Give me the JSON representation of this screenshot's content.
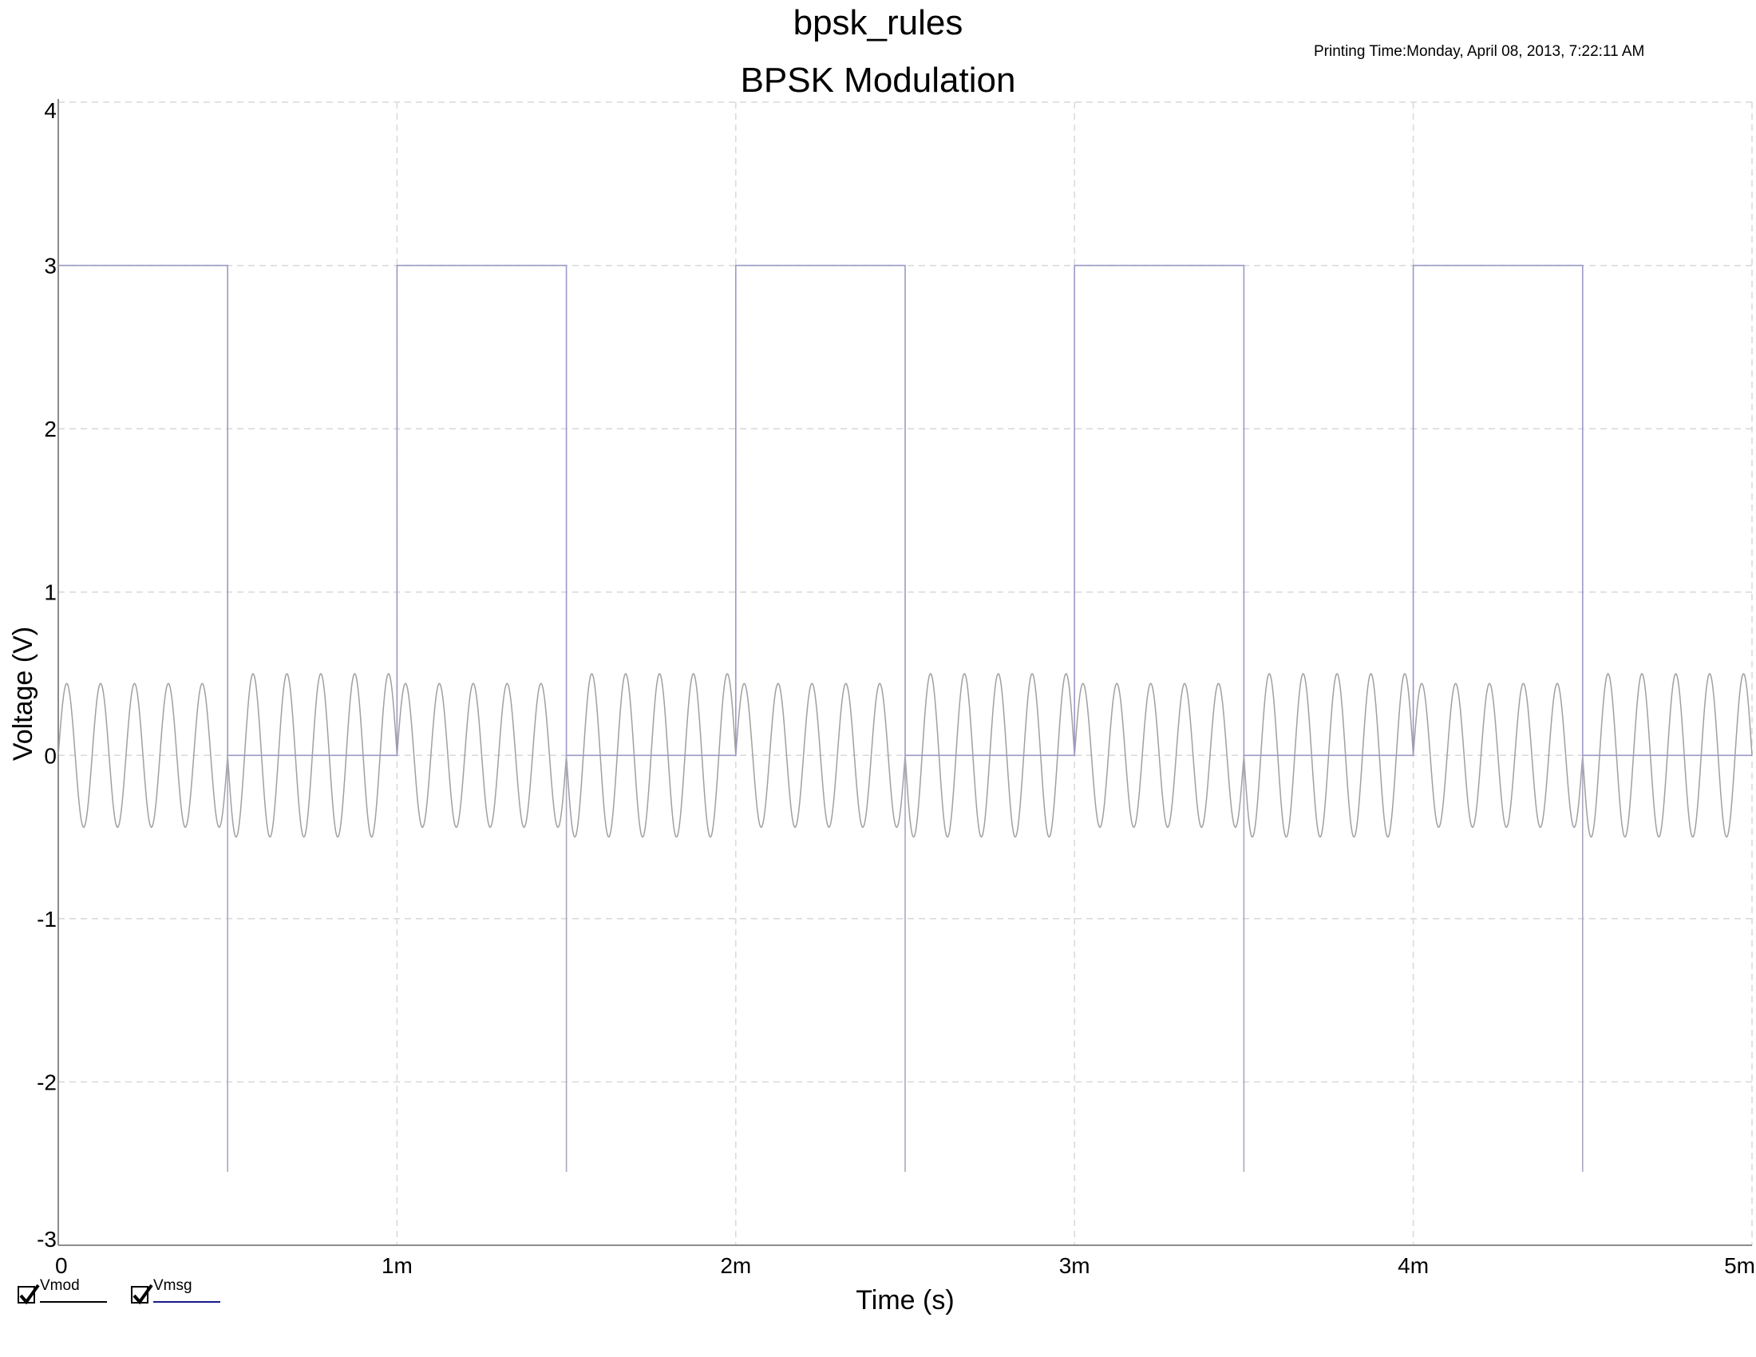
{
  "header": {
    "doc_title": "bpsk_rules",
    "printing_time": "Printing Time:Monday, April 08, 2013, 7:22:11 AM"
  },
  "chart_data": {
    "type": "line",
    "title": "BPSK Modulation",
    "xlabel": "Time (s)",
    "ylabel": "Voltage (V)",
    "xlim": [
      0,
      0.005
    ],
    "ylim": [
      -3,
      4
    ],
    "x_ticks": [
      0,
      0.001,
      0.002,
      0.003,
      0.004,
      0.005
    ],
    "x_tick_labels": [
      "0",
      "1m",
      "2m",
      "3m",
      "4m",
      "5m"
    ],
    "y_ticks": [
      -3,
      -2,
      -1,
      0,
      1,
      2,
      3,
      4
    ],
    "y_tick_labels": [
      "-3",
      "-2",
      "-1",
      "0",
      "1",
      "2",
      "3",
      "4"
    ],
    "grid": true,
    "legend_position": "bottom-left",
    "series": [
      {
        "name": "Vmod",
        "kind": "bpsk-sine",
        "color": "#a0a0a0",
        "frequency_hz": 10000,
        "amplitude_high_bit": 0.44,
        "amplitude_low_bit": 0.5,
        "samples": [
          {
            "x": 2.5e-05,
            "y": 0.44
          },
          {
            "x": 7.5e-05,
            "y": -0.44
          },
          {
            "x": 0.000525,
            "y": -0.5
          },
          {
            "x": 0.000575,
            "y": 0.5
          }
        ]
      },
      {
        "name": "Vmsg",
        "kind": "square",
        "color": "#9a9ac8",
        "high": 3,
        "low": 0,
        "period_s": 0.001,
        "duty": 0.5,
        "transition_spike_min": -2.55,
        "points": [
          {
            "x": 0,
            "y": 3
          },
          {
            "x": 0.0005,
            "y": 3
          },
          {
            "x": 0.0005,
            "y": 0
          },
          {
            "x": 0.001,
            "y": 0
          },
          {
            "x": 0.001,
            "y": 3
          },
          {
            "x": 0.0015,
            "y": 3
          },
          {
            "x": 0.0015,
            "y": 0
          },
          {
            "x": 0.002,
            "y": 0
          },
          {
            "x": 0.002,
            "y": 3
          },
          {
            "x": 0.0025,
            "y": 3
          },
          {
            "x": 0.0025,
            "y": 0
          },
          {
            "x": 0.003,
            "y": 0
          },
          {
            "x": 0.003,
            "y": 3
          },
          {
            "x": 0.0035,
            "y": 3
          },
          {
            "x": 0.0035,
            "y": 0
          },
          {
            "x": 0.004,
            "y": 0
          },
          {
            "x": 0.004,
            "y": 3
          },
          {
            "x": 0.0045,
            "y": 3
          },
          {
            "x": 0.0045,
            "y": 0
          },
          {
            "x": 0.005,
            "y": 0
          }
        ]
      }
    ]
  },
  "legend": {
    "items": [
      {
        "label": "Vmod",
        "checked": true,
        "line_color": "#000000"
      },
      {
        "label": "Vmsg",
        "checked": true,
        "line_color": "#1a1a8c"
      }
    ]
  }
}
